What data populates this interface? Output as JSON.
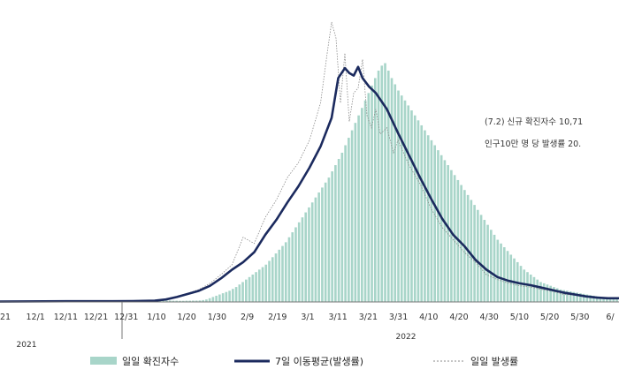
{
  "chart_data": {
    "type": "bar",
    "x_tick_labels": [
      "21",
      "12/1",
      "12/11",
      "12/21",
      "12/31",
      "1/10",
      "1/20",
      "1/30",
      "2/9",
      "2/19",
      "3/1",
      "3/11",
      "3/21",
      "3/31",
      "4/10",
      "4/20",
      "4/30",
      "5/10",
      "5/20",
      "5/30",
      "6/"
    ],
    "year_labels": [
      "2021",
      "2022"
    ],
    "annotation_lines": [
      "(7.2) 신규 확진자수 10,71",
      "인구10만 명 당 발생률 20."
    ],
    "legend": [
      "일일 확진자수",
      "7일 이동평균(발생률)",
      "일일 발생률"
    ],
    "colors": {
      "bars": "#a8d5c9",
      "moving_average": "#1b2a5e",
      "daily_rate": "#8a8a8a",
      "axis": "#777777"
    },
    "series": [
      {
        "name": "7일 이동평균(발생률)",
        "kind": "line",
        "points": [
          [
            0,
            0.3
          ],
          [
            10,
            0.4
          ],
          [
            20,
            0.5
          ],
          [
            30,
            0.6
          ],
          [
            40,
            0.6
          ],
          [
            50,
            0.6
          ],
          [
            60,
            0.7
          ],
          [
            70,
            1.0
          ],
          [
            75,
            2.0
          ],
          [
            80,
            4.0
          ],
          [
            85,
            6.5
          ],
          [
            90,
            9.0
          ],
          [
            95,
            13.0
          ],
          [
            100,
            19.0
          ],
          [
            105,
            26.0
          ],
          [
            110,
            32.0
          ],
          [
            115,
            40.0
          ],
          [
            120,
            54.0
          ],
          [
            125,
            66.0
          ],
          [
            130,
            80.0
          ],
          [
            135,
            93.0
          ],
          [
            140,
            108.0
          ],
          [
            145,
            125.0
          ],
          [
            150,
            148.0
          ],
          [
            153,
            180.0
          ],
          [
            156,
            188.0
          ],
          [
            158,
            184.0
          ],
          [
            160,
            182.0
          ],
          [
            162,
            189.0
          ],
          [
            164,
            180.0
          ],
          [
            167,
            173.0
          ],
          [
            170,
            168.0
          ],
          [
            175,
            155.0
          ],
          [
            180,
            136.0
          ],
          [
            185,
            118.0
          ],
          [
            190,
            100.0
          ],
          [
            195,
            83.0
          ],
          [
            200,
            67.0
          ],
          [
            205,
            54.0
          ],
          [
            210,
            45.0
          ],
          [
            215,
            34.0
          ],
          [
            220,
            26.0
          ],
          [
            225,
            20.0
          ],
          [
            230,
            17.0
          ],
          [
            235,
            15.0
          ],
          [
            240,
            13.5
          ],
          [
            245,
            11.5
          ],
          [
            250,
            9.5
          ],
          [
            255,
            7.5
          ],
          [
            260,
            6.0
          ],
          [
            265,
            4.5
          ],
          [
            270,
            3.5
          ],
          [
            275,
            3.0
          ],
          [
            280,
            3.0
          ]
        ]
      },
      {
        "name": "일일 발생률",
        "kind": "line",
        "points": [
          [
            0,
            0.3
          ],
          [
            10,
            0.4
          ],
          [
            20,
            0.5
          ],
          [
            30,
            0.6
          ],
          [
            40,
            0.6
          ],
          [
            50,
            0.6
          ],
          [
            60,
            0.7
          ],
          [
            70,
            1.0
          ],
          [
            75,
            2.2
          ],
          [
            80,
            4.5
          ],
          [
            85,
            7.0
          ],
          [
            90,
            10.0
          ],
          [
            95,
            15.0
          ],
          [
            100,
            22.0
          ],
          [
            105,
            30.0
          ],
          [
            110,
            52.0
          ],
          [
            115,
            47.0
          ],
          [
            120,
            68.0
          ],
          [
            125,
            82.0
          ],
          [
            130,
            100.0
          ],
          [
            135,
            112.0
          ],
          [
            140,
            130.0
          ],
          [
            145,
            160.0
          ],
          [
            148,
            200.0
          ],
          [
            150,
            225.0
          ],
          [
            152,
            212.0
          ],
          [
            154,
            160.0
          ],
          [
            156,
            200.0
          ],
          [
            158,
            145.0
          ],
          [
            160,
            168.0
          ],
          [
            162,
            172.0
          ],
          [
            164,
            195.0
          ],
          [
            166,
            150.0
          ],
          [
            168,
            140.0
          ],
          [
            170,
            155.0
          ],
          [
            172,
            135.0
          ],
          [
            175,
            140.0
          ],
          [
            178,
            120.0
          ],
          [
            180,
            130.0
          ],
          [
            185,
            110.0
          ],
          [
            190,
            95.0
          ],
          [
            195,
            75.0
          ],
          [
            200,
            60.0
          ],
          [
            205,
            50.0
          ],
          [
            210,
            40.0
          ],
          [
            215,
            32.0
          ],
          [
            220,
            22.0
          ],
          [
            225,
            18.0
          ],
          [
            230,
            15.0
          ],
          [
            235,
            13.0
          ],
          [
            240,
            12.0
          ],
          [
            245,
            10.0
          ],
          [
            250,
            8.5
          ],
          [
            255,
            6.0
          ],
          [
            260,
            5.5
          ],
          [
            265,
            4.0
          ],
          [
            270,
            3.5
          ],
          [
            275,
            3.0
          ],
          [
            280,
            3.0
          ]
        ]
      },
      {
        "name": "일일 확진자수",
        "kind": "bar",
        "values": [
          0.5,
          0.5,
          0.6,
          0.7,
          0.7,
          0.8,
          0.8,
          0.8,
          0.9,
          0.9,
          0.9,
          0.9,
          1.0,
          1.0,
          1.0,
          1.0,
          1.0,
          1.0,
          0.9,
          0.9,
          0.9,
          1.0,
          1.0,
          1.0,
          1.0,
          1.0,
          1.1,
          1.1,
          1.1,
          1.2,
          1.2,
          1.2,
          1.3,
          1.3,
          1.3,
          1.4,
          1.4,
          1.4,
          1.4,
          1.4,
          1.4,
          1.5,
          1.5,
          1.5,
          1.4,
          1.4,
          1.3,
          1.3,
          1.2,
          1.2,
          1.1,
          1.1,
          1.0,
          1.0,
          0.9,
          0.9,
          1.0,
          1.0,
          1.1,
          1.1,
          1.2,
          1.5,
          2.0,
          3.0,
          4.0,
          5.0,
          6.0,
          7.0,
          8.0,
          9.0,
          10.5,
          12.0,
          14.0,
          16.0,
          18.0,
          20.0,
          22.0,
          24.0,
          26.0,
          28.0,
          30.0,
          33.0,
          36.0,
          39.0,
          42.0,
          45.0,
          48.0,
          52.0,
          56.0,
          60.0,
          64.0,
          68.0,
          72.0,
          76.0,
          80.0,
          84.0,
          88.0,
          92.0,
          96.0,
          100.0,
          105.0,
          110.0,
          115.0,
          120.0,
          126.0,
          132.0,
          138.0,
          144.0,
          150.0,
          156.0,
          162.0,
          168.0,
          174.0,
          180.0,
          186.0,
          190.0,
          192.0,
          186.0,
          180.0,
          175.0,
          170.0,
          166.0,
          162.0,
          158.0,
          154.0,
          150.0,
          146.0,
          142.0,
          138.0,
          134.0,
          130.0,
          126.0,
          122.0,
          118.0,
          114.0,
          110.0,
          106.0,
          102.0,
          98.0,
          94.0,
          90.0,
          86.0,
          82.0,
          78.0,
          74.0,
          70.0,
          66.0,
          62.0,
          58.0,
          54.0,
          50.0,
          47.0,
          44.0,
          41.0,
          38.0,
          35.0,
          32.0,
          29.0,
          26.0,
          24.0,
          22.0,
          20.0,
          18.0,
          16.0,
          15.0,
          14.0,
          13.0,
          12.0,
          11.0,
          10.0,
          9.5,
          9.0,
          8.5,
          8.0,
          7.5,
          7.0,
          6.5,
          6.0,
          5.5,
          5.0,
          4.6,
          4.2,
          3.9,
          3.6,
          3.4,
          3.2,
          3.0
        ]
      }
    ],
    "x_range_days": [
      0,
      280
    ],
    "ylim": [
      0,
      230
    ],
    "grid": false
  }
}
